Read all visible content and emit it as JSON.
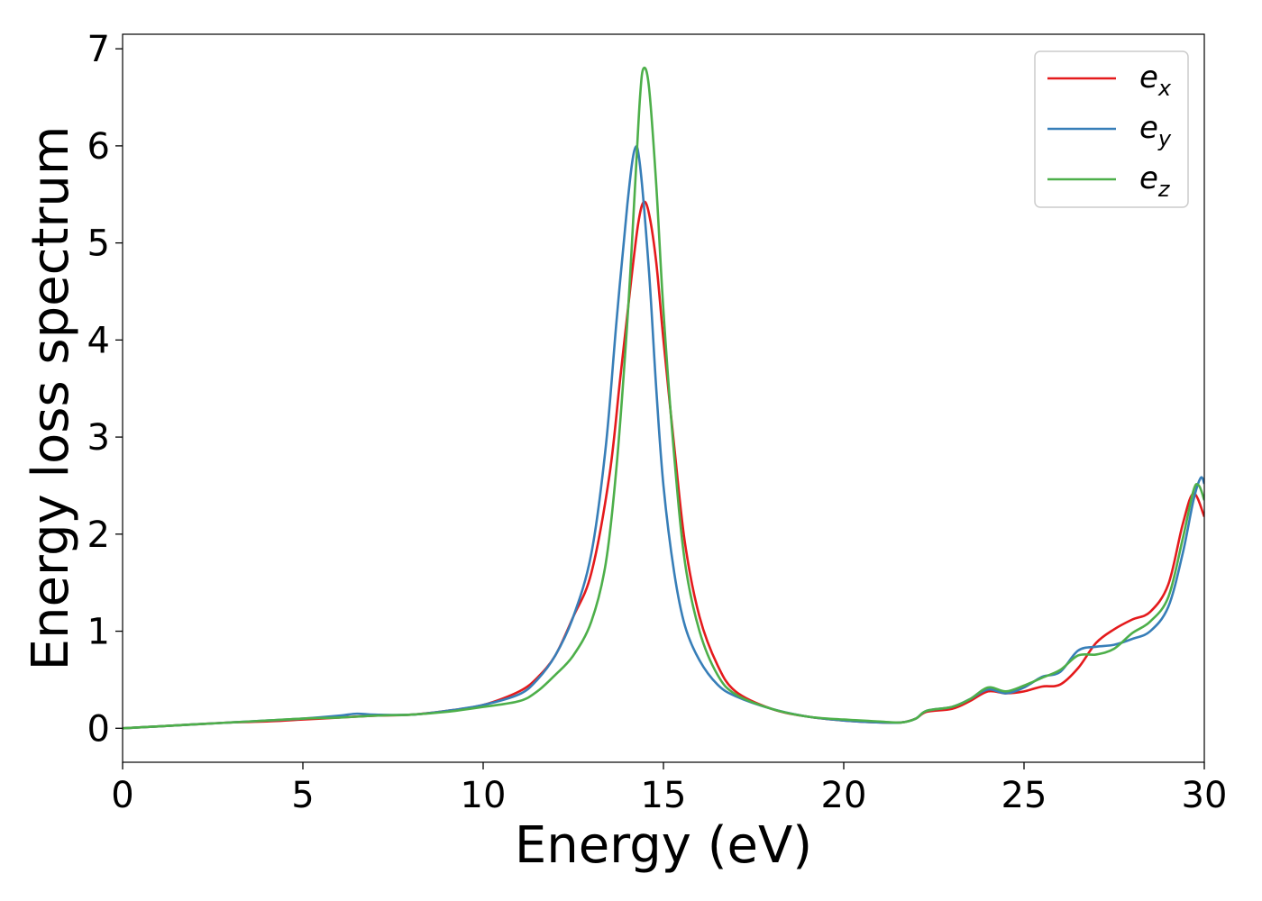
{
  "chart_data": {
    "type": "line",
    "title": "",
    "xlabel": "Energy (eV)",
    "ylabel": "Energy loss spectrum",
    "xlim": [
      0,
      30
    ],
    "ylim": [
      -0.35,
      7.15
    ],
    "xticks": [
      0,
      5,
      10,
      15,
      20,
      25,
      30
    ],
    "yticks": [
      0,
      1,
      2,
      3,
      4,
      5,
      6,
      7
    ],
    "grid": false,
    "legend_position": "top-right",
    "series": [
      {
        "name": "e_x",
        "label_main": "e",
        "label_sub": "x",
        "color": "#e41a1c",
        "points": [
          [
            0,
            0.0
          ],
          [
            1,
            0.02
          ],
          [
            2,
            0.04
          ],
          [
            3,
            0.06
          ],
          [
            4,
            0.07
          ],
          [
            5,
            0.09
          ],
          [
            6,
            0.11
          ],
          [
            7,
            0.13
          ],
          [
            8,
            0.14
          ],
          [
            9,
            0.18
          ],
          [
            10,
            0.24
          ],
          [
            11,
            0.38
          ],
          [
            11.5,
            0.52
          ],
          [
            12,
            0.75
          ],
          [
            12.5,
            1.15
          ],
          [
            13,
            1.6
          ],
          [
            13.5,
            2.6
          ],
          [
            13.8,
            3.6
          ],
          [
            14.1,
            4.6
          ],
          [
            14.3,
            5.2
          ],
          [
            14.45,
            5.42
          ],
          [
            14.6,
            5.3
          ],
          [
            14.8,
            4.8
          ],
          [
            15,
            4.0
          ],
          [
            15.3,
            2.9
          ],
          [
            15.6,
            1.9
          ],
          [
            16,
            1.15
          ],
          [
            16.5,
            0.65
          ],
          [
            17,
            0.38
          ],
          [
            18,
            0.2
          ],
          [
            19,
            0.12
          ],
          [
            20,
            0.08
          ],
          [
            21,
            0.06
          ],
          [
            21.6,
            0.06
          ],
          [
            22,
            0.1
          ],
          [
            22.3,
            0.17
          ],
          [
            23,
            0.2
          ],
          [
            23.5,
            0.28
          ],
          [
            24,
            0.38
          ],
          [
            24.5,
            0.36
          ],
          [
            25,
            0.38
          ],
          [
            25.5,
            0.43
          ],
          [
            26,
            0.45
          ],
          [
            26.5,
            0.62
          ],
          [
            27,
            0.88
          ],
          [
            27.5,
            1.02
          ],
          [
            28,
            1.12
          ],
          [
            28.5,
            1.2
          ],
          [
            29,
            1.48
          ],
          [
            29.4,
            2.1
          ],
          [
            29.7,
            2.42
          ],
          [
            30,
            2.18
          ]
        ]
      },
      {
        "name": "e_y",
        "label_main": "e",
        "label_sub": "y",
        "color": "#377eb8",
        "points": [
          [
            0,
            0.0
          ],
          [
            1,
            0.02
          ],
          [
            2,
            0.04
          ],
          [
            3,
            0.06
          ],
          [
            4,
            0.08
          ],
          [
            5,
            0.1
          ],
          [
            6,
            0.13
          ],
          [
            6.5,
            0.15
          ],
          [
            7,
            0.14
          ],
          [
            8,
            0.14
          ],
          [
            9,
            0.18
          ],
          [
            10,
            0.24
          ],
          [
            11,
            0.35
          ],
          [
            11.5,
            0.5
          ],
          [
            12,
            0.75
          ],
          [
            12.5,
            1.15
          ],
          [
            13,
            1.8
          ],
          [
            13.4,
            2.9
          ],
          [
            13.7,
            4.2
          ],
          [
            14,
            5.4
          ],
          [
            14.2,
            5.96
          ],
          [
            14.35,
            5.8
          ],
          [
            14.6,
            4.7
          ],
          [
            14.8,
            3.5
          ],
          [
            15,
            2.5
          ],
          [
            15.3,
            1.6
          ],
          [
            15.6,
            1.05
          ],
          [
            16,
            0.7
          ],
          [
            16.5,
            0.45
          ],
          [
            17,
            0.33
          ],
          [
            18,
            0.2
          ],
          [
            19,
            0.12
          ],
          [
            20,
            0.08
          ],
          [
            21,
            0.06
          ],
          [
            21.6,
            0.06
          ],
          [
            22,
            0.1
          ],
          [
            22.3,
            0.18
          ],
          [
            23,
            0.22
          ],
          [
            23.5,
            0.3
          ],
          [
            24,
            0.4
          ],
          [
            24.5,
            0.36
          ],
          [
            25,
            0.42
          ],
          [
            25.5,
            0.53
          ],
          [
            26,
            0.58
          ],
          [
            26.5,
            0.8
          ],
          [
            27,
            0.84
          ],
          [
            27.5,
            0.86
          ],
          [
            28,
            0.92
          ],
          [
            28.5,
            1.0
          ],
          [
            29,
            1.25
          ],
          [
            29.4,
            1.8
          ],
          [
            29.7,
            2.35
          ],
          [
            29.9,
            2.58
          ],
          [
            30,
            2.52
          ]
        ]
      },
      {
        "name": "e_z",
        "label_main": "e",
        "label_sub": "z",
        "color": "#4daf4a",
        "points": [
          [
            0,
            0.0
          ],
          [
            1,
            0.02
          ],
          [
            2,
            0.04
          ],
          [
            3,
            0.06
          ],
          [
            4,
            0.08
          ],
          [
            5,
            0.1
          ],
          [
            6,
            0.11
          ],
          [
            7,
            0.13
          ],
          [
            8,
            0.14
          ],
          [
            9,
            0.17
          ],
          [
            10,
            0.22
          ],
          [
            11,
            0.28
          ],
          [
            11.5,
            0.38
          ],
          [
            12,
            0.55
          ],
          [
            12.5,
            0.75
          ],
          [
            13,
            1.1
          ],
          [
            13.4,
            1.7
          ],
          [
            13.7,
            2.7
          ],
          [
            14,
            4.2
          ],
          [
            14.2,
            5.5
          ],
          [
            14.35,
            6.5
          ],
          [
            14.45,
            6.8
          ],
          [
            14.6,
            6.6
          ],
          [
            14.8,
            5.6
          ],
          [
            15,
            4.3
          ],
          [
            15.3,
            2.8
          ],
          [
            15.6,
            1.7
          ],
          [
            16,
            1.0
          ],
          [
            16.5,
            0.55
          ],
          [
            17,
            0.35
          ],
          [
            18,
            0.2
          ],
          [
            19,
            0.12
          ],
          [
            20,
            0.09
          ],
          [
            21,
            0.07
          ],
          [
            21.6,
            0.06
          ],
          [
            22,
            0.1
          ],
          [
            22.3,
            0.18
          ],
          [
            23,
            0.22
          ],
          [
            23.5,
            0.3
          ],
          [
            24,
            0.42
          ],
          [
            24.5,
            0.38
          ],
          [
            25,
            0.44
          ],
          [
            25.5,
            0.52
          ],
          [
            26,
            0.6
          ],
          [
            26.5,
            0.75
          ],
          [
            27,
            0.76
          ],
          [
            27.5,
            0.82
          ],
          [
            28,
            0.98
          ],
          [
            28.5,
            1.1
          ],
          [
            29,
            1.35
          ],
          [
            29.4,
            1.95
          ],
          [
            29.7,
            2.45
          ],
          [
            29.85,
            2.5
          ],
          [
            30,
            2.35
          ]
        ]
      }
    ]
  }
}
